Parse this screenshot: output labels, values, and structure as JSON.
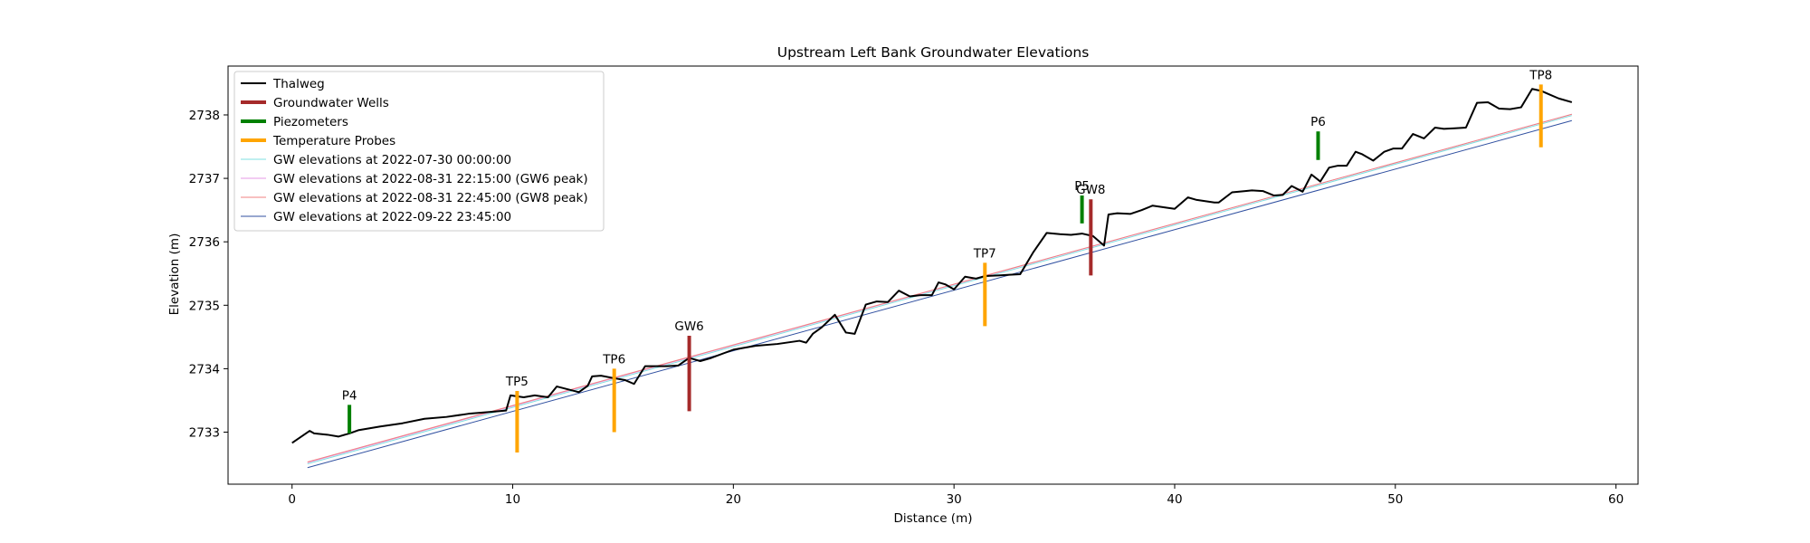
{
  "chart_data": {
    "type": "line",
    "title": "Upstream Left Bank Groundwater Elevations",
    "xlabel": "Distance (m)",
    "ylabel": "Elevation (m)",
    "xlim": [
      -2.9,
      61.0
    ],
    "ylim": [
      2732.18,
      2738.77
    ],
    "xticks": [
      0,
      10,
      20,
      30,
      40,
      50,
      60
    ],
    "yticks": [
      2733,
      2734,
      2735,
      2736,
      2737,
      2738
    ],
    "legend_position": "upper-left",
    "grid": false,
    "colors": {
      "thalweg": "#000000",
      "wells": "#a52a2a",
      "piezometers": "#008000",
      "probes": "#ffa500"
    },
    "legend": [
      {
        "label": "Thalweg",
        "color": "#000000",
        "width": 2
      },
      {
        "label": "Groundwater Wells",
        "color": "#a52a2a",
        "width": 4
      },
      {
        "label": "Piezometers",
        "color": "#008000",
        "width": 4
      },
      {
        "label": "Temperature Probes",
        "color": "#ffa500",
        "width": 4
      },
      {
        "label": "GW elevations at 2022-07-30 00:00:00",
        "color": "#7fdfe0",
        "width": 1
      },
      {
        "label": "GW elevations at 2022-08-31 22:15:00 (GW6 peak)",
        "color": "#e69ae6",
        "width": 1
      },
      {
        "label": "GW elevations at 2022-08-31 22:45:00 (GW8 peak)",
        "color": "#f08080",
        "width": 1
      },
      {
        "label": "GW elevations at 2022-09-22 23:45:00",
        "color": "#3050a0",
        "width": 1
      }
    ],
    "thalweg": {
      "x": [
        0,
        0.8,
        1.0,
        1.6,
        2.1,
        2.6,
        3.0,
        4.0,
        5.0,
        6.0,
        7.0,
        8.0,
        9.0,
        9.7,
        9.9,
        10.5,
        11.0,
        11.6,
        12.0,
        13.0,
        13.4,
        13.6,
        14.0,
        14.6,
        15.1,
        15.5,
        16.0,
        17.0,
        17.5,
        18.0,
        18.5,
        19.0,
        20.0,
        21.0,
        22.0,
        23.0,
        23.3,
        23.6,
        24.0,
        24.6,
        25.1,
        25.5,
        26.0,
        26.5,
        27.0,
        27.5,
        28.0,
        28.5,
        29.0,
        29.3,
        29.6,
        30.0,
        30.5,
        31.0,
        31.4,
        32.0,
        32.5,
        33.0,
        33.6,
        34.2,
        34.8,
        35.3,
        35.8,
        36.3,
        36.8,
        37.0,
        37.4,
        38.0,
        38.5,
        39.0,
        39.6,
        40.0,
        40.6,
        41.0,
        41.8,
        42.0,
        42.6,
        43.2,
        43.5,
        44.0,
        44.5,
        44.9,
        45.3,
        45.8,
        46.2,
        46.6,
        47.0,
        47.4,
        47.8,
        48.2,
        48.5,
        49.0,
        49.5,
        49.9,
        50.3,
        50.8,
        51.3,
        51.8,
        52.2,
        52.7,
        53.2,
        53.7,
        54.2,
        54.7,
        55.2,
        55.7,
        56.2,
        56.6,
        57.0,
        57.4,
        58.0
      ],
      "y": [
        2732.83,
        2733.02,
        2732.98,
        2732.96,
        2732.93,
        2732.98,
        2733.03,
        2733.09,
        2733.14,
        2733.21,
        2733.24,
        2733.29,
        2733.32,
        2733.34,
        2733.58,
        2733.55,
        2733.58,
        2733.55,
        2733.72,
        2733.63,
        2733.73,
        2733.88,
        2733.89,
        2733.85,
        2733.82,
        2733.76,
        2734.04,
        2734.04,
        2734.05,
        2734.17,
        2734.12,
        2734.17,
        2734.3,
        2734.36,
        2734.39,
        2734.44,
        2734.41,
        2734.55,
        2734.65,
        2734.85,
        2734.57,
        2734.55,
        2735.01,
        2735.06,
        2735.05,
        2735.23,
        2735.14,
        2735.16,
        2735.16,
        2735.36,
        2735.33,
        2735.25,
        2735.45,
        2735.42,
        2735.46,
        2735.47,
        2735.48,
        2735.49,
        2735.84,
        2736.14,
        2736.12,
        2736.11,
        2736.13,
        2736.09,
        2735.94,
        2736.43,
        2736.45,
        2736.44,
        2736.5,
        2736.57,
        2736.54,
        2736.52,
        2736.7,
        2736.66,
        2736.62,
        2736.62,
        2736.78,
        2736.8,
        2736.81,
        2736.8,
        2736.73,
        2736.74,
        2736.88,
        2736.79,
        2737.06,
        2736.95,
        2737.17,
        2737.2,
        2737.2,
        2737.42,
        2737.38,
        2737.28,
        2737.42,
        2737.47,
        2737.47,
        2737.7,
        2737.63,
        2737.8,
        2737.78,
        2737.79,
        2737.8,
        2738.19,
        2738.2,
        2738.1,
        2738.09,
        2738.12,
        2738.41,
        2738.38,
        2738.32,
        2738.26,
        2738.2
      ]
    },
    "gw_lines": [
      {
        "x": [
          0.7,
          58.0
        ],
        "y": [
          2732.5,
          2737.99
        ],
        "color": "#7fdfe0"
      },
      {
        "x": [
          0.7,
          58.0
        ],
        "y": [
          2732.52,
          2738.01
        ],
        "color": "#e69ae6"
      },
      {
        "x": [
          0.7,
          58.0
        ],
        "y": [
          2732.53,
          2738.01
        ],
        "color": "#f08080"
      },
      {
        "x": [
          0.7,
          58.0
        ],
        "y": [
          2732.44,
          2737.91
        ],
        "color": "#3050a0"
      }
    ],
    "markers": [
      {
        "name": "P4",
        "kind": "piezometer",
        "x": 2.6,
        "y_top": 2733.43,
        "y_bottom": 2732.98
      },
      {
        "name": "TP5",
        "kind": "probe",
        "x": 10.2,
        "y_top": 2733.65,
        "y_bottom": 2732.68
      },
      {
        "name": "TP6",
        "kind": "probe",
        "x": 14.6,
        "y_top": 2734.0,
        "y_bottom": 2733.0
      },
      {
        "name": "GW6",
        "kind": "well",
        "x": 18.0,
        "y_top": 2734.52,
        "y_bottom": 2733.33
      },
      {
        "name": "TP7",
        "kind": "probe",
        "x": 31.4,
        "y_top": 2735.67,
        "y_bottom": 2734.67
      },
      {
        "name": "P5",
        "kind": "piezometer",
        "x": 35.8,
        "y_top": 2736.73,
        "y_bottom": 2736.29
      },
      {
        "name": "GW8",
        "kind": "well",
        "x": 36.2,
        "y_top": 2736.67,
        "y_bottom": 2735.47
      },
      {
        "name": "P6",
        "kind": "piezometer",
        "x": 46.5,
        "y_top": 2737.74,
        "y_bottom": 2737.29
      },
      {
        "name": "TP8",
        "kind": "probe",
        "x": 56.6,
        "y_top": 2738.48,
        "y_bottom": 2737.49
      }
    ]
  }
}
